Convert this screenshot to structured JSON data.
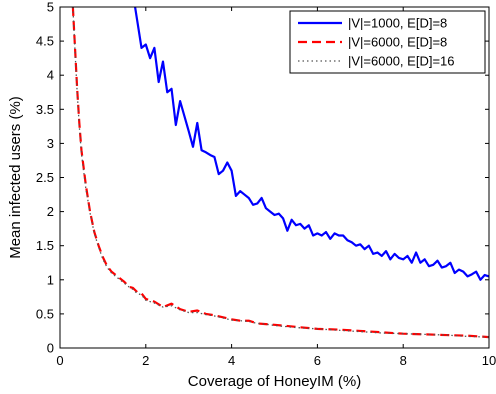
{
  "chart_data": {
    "type": "line",
    "title": "",
    "xlabel": "Coverage of HoneyIM (%)",
    "ylabel": "Mean infected users (%)",
    "xlim": [
      0,
      10
    ],
    "ylim": [
      0,
      5
    ],
    "xticks": [
      0,
      2,
      4,
      6,
      8,
      10
    ],
    "yticks": [
      0,
      0.5,
      1,
      1.5,
      2,
      2.5,
      3,
      3.5,
      4,
      4.5,
      5
    ],
    "xtick_labels": [
      "0",
      "2",
      "4",
      "6",
      "8",
      "10"
    ],
    "ytick_labels": [
      "0",
      "0.5",
      "1",
      "1.5",
      "2",
      "2.5",
      "3",
      "3.5",
      "4",
      "4.5",
      "5"
    ],
    "grid": false,
    "legend_position": "top-right",
    "series": [
      {
        "name": "|V|=1000, E[D]=8",
        "color": "#0000ff",
        "dash": "solid",
        "x": [
          1.75,
          1.8,
          1.9,
          2.0,
          2.1,
          2.2,
          2.3,
          2.4,
          2.5,
          2.6,
          2.7,
          2.8,
          2.9,
          3.0,
          3.1,
          3.2,
          3.3,
          3.4,
          3.5,
          3.6,
          3.7,
          3.8,
          3.9,
          4.0,
          4.1,
          4.2,
          4.3,
          4.4,
          4.5,
          4.6,
          4.7,
          4.8,
          4.9,
          5.0,
          5.1,
          5.2,
          5.3,
          5.4,
          5.5,
          5.6,
          5.7,
          5.8,
          5.9,
          6.0,
          6.1,
          6.2,
          6.3,
          6.4,
          6.5,
          6.6,
          6.7,
          6.8,
          6.9,
          7.0,
          7.1,
          7.2,
          7.3,
          7.4,
          7.5,
          7.6,
          7.7,
          7.8,
          7.9,
          8.0,
          8.1,
          8.2,
          8.3,
          8.4,
          8.5,
          8.6,
          8.7,
          8.8,
          8.9,
          9.0,
          9.1,
          9.2,
          9.3,
          9.4,
          9.5,
          9.6,
          9.7,
          9.8,
          9.9,
          10.0
        ],
        "y": [
          5.0,
          4.8,
          4.4,
          4.45,
          4.25,
          4.4,
          3.9,
          4.2,
          3.75,
          3.8,
          3.27,
          3.62,
          3.4,
          3.18,
          2.95,
          3.3,
          2.9,
          2.87,
          2.83,
          2.8,
          2.55,
          2.6,
          2.72,
          2.6,
          2.23,
          2.3,
          2.25,
          2.2,
          2.1,
          2.12,
          2.2,
          2.05,
          2.0,
          1.95,
          1.97,
          1.9,
          1.72,
          1.88,
          1.8,
          1.82,
          1.75,
          1.8,
          1.65,
          1.68,
          1.65,
          1.7,
          1.6,
          1.68,
          1.65,
          1.65,
          1.58,
          1.55,
          1.5,
          1.52,
          1.45,
          1.5,
          1.38,
          1.4,
          1.35,
          1.42,
          1.3,
          1.38,
          1.32,
          1.3,
          1.35,
          1.25,
          1.4,
          1.25,
          1.3,
          1.2,
          1.22,
          1.28,
          1.18,
          1.2,
          1.25,
          1.1,
          1.15,
          1.12,
          1.05,
          1.08,
          1.12,
          1.0,
          1.07,
          1.05
        ]
      },
      {
        "name": "|V|=6000, E[D]=8",
        "color": "#ff0000",
        "dash": "dashed",
        "x": [
          0.3,
          0.35,
          0.4,
          0.45,
          0.5,
          0.6,
          0.7,
          0.8,
          0.9,
          1.0,
          1.1,
          1.2,
          1.3,
          1.4,
          1.5,
          1.6,
          1.7,
          1.8,
          1.9,
          2.0,
          2.2,
          2.4,
          2.6,
          2.8,
          3.0,
          3.2,
          3.4,
          3.6,
          3.8,
          4.0,
          4.2,
          4.4,
          4.6,
          4.8,
          5.0,
          5.5,
          6.0,
          6.5,
          7.0,
          7.5,
          8.0,
          8.5,
          9.0,
          9.5,
          10.0
        ],
        "y": [
          5.0,
          4.4,
          3.8,
          3.3,
          2.9,
          2.4,
          2.0,
          1.7,
          1.5,
          1.33,
          1.2,
          1.12,
          1.07,
          1.02,
          0.97,
          0.9,
          0.88,
          0.82,
          0.8,
          0.72,
          0.68,
          0.6,
          0.65,
          0.57,
          0.53,
          0.55,
          0.5,
          0.48,
          0.45,
          0.42,
          0.4,
          0.4,
          0.36,
          0.35,
          0.34,
          0.31,
          0.28,
          0.27,
          0.25,
          0.23,
          0.21,
          0.2,
          0.19,
          0.18,
          0.16
        ]
      },
      {
        "name": "|V|=6000, E[D]=16",
        "color": "#555555",
        "dash": "dotted",
        "x": [
          0.3,
          0.35,
          0.4,
          0.45,
          0.5,
          0.6,
          0.7,
          0.8,
          0.9,
          1.0,
          1.1,
          1.2,
          1.3,
          1.4,
          1.5,
          1.6,
          1.7,
          1.8,
          1.9,
          2.0,
          2.2,
          2.4,
          2.6,
          2.8,
          3.0,
          3.2,
          3.4,
          3.6,
          3.8,
          4.0,
          4.2,
          4.4,
          4.6,
          4.8,
          5.0,
          5.5,
          6.0,
          6.5,
          7.0,
          7.5,
          8.0,
          8.5,
          9.0,
          9.5,
          10.0
        ],
        "y": [
          5.0,
          4.35,
          3.75,
          3.25,
          2.85,
          2.35,
          1.98,
          1.68,
          1.48,
          1.3,
          1.18,
          1.1,
          1.05,
          1.0,
          0.95,
          0.9,
          0.86,
          0.8,
          0.78,
          0.7,
          0.66,
          0.6,
          0.62,
          0.56,
          0.52,
          0.52,
          0.49,
          0.47,
          0.44,
          0.41,
          0.4,
          0.39,
          0.36,
          0.35,
          0.33,
          0.3,
          0.28,
          0.26,
          0.24,
          0.22,
          0.21,
          0.2,
          0.19,
          0.17,
          0.16
        ]
      }
    ]
  }
}
